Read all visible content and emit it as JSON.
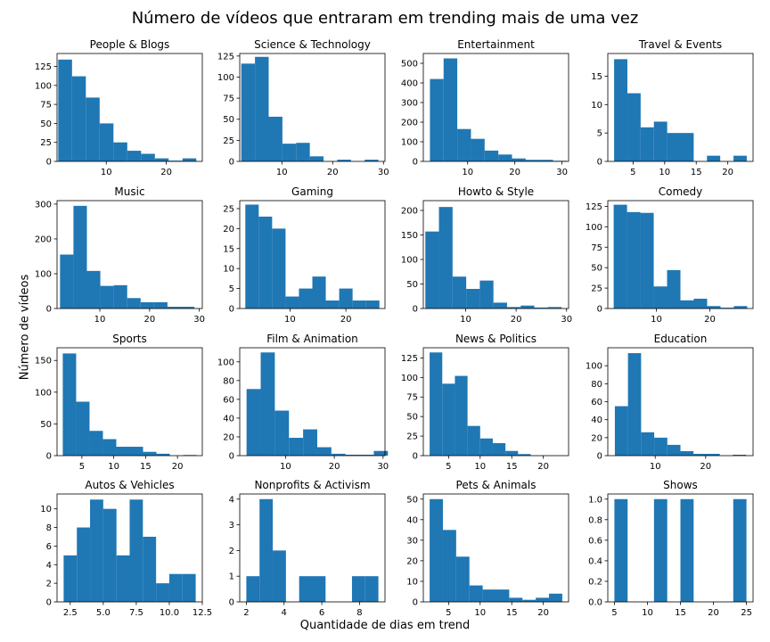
{
  "figure": {
    "suptitle": "Número de vídeos que entraram em trending mais de uma vez",
    "xlabel": "Quantidade de dias em trend",
    "ylabel": "Número de vídeos",
    "bar_color": "#1f77b4"
  },
  "chart_data": [
    {
      "type": "bar",
      "title": "People & Blogs",
      "xlim": [
        1.8,
        26
      ],
      "ylim": [
        0,
        142
      ],
      "xticks": [
        10,
        20
      ],
      "yticks": [
        0,
        25,
        50,
        75,
        100,
        125
      ],
      "bins": [
        [
          2.0,
          4.3,
          134
        ],
        [
          4.3,
          6.6,
          112
        ],
        [
          6.6,
          8.9,
          84
        ],
        [
          8.9,
          11.2,
          50
        ],
        [
          11.2,
          13.5,
          25
        ],
        [
          13.5,
          15.8,
          14
        ],
        [
          15.8,
          18.1,
          10
        ],
        [
          18.1,
          20.4,
          4
        ],
        [
          20.4,
          22.7,
          1
        ],
        [
          22.7,
          25.0,
          4
        ]
      ]
    },
    {
      "type": "bar",
      "title": "Science & Technology",
      "xlim": [
        1.7,
        30.3
      ],
      "ylim": [
        0,
        128
      ],
      "xticks": [
        10,
        20,
        30
      ],
      "yticks": [
        0,
        25,
        50,
        75,
        100,
        125
      ],
      "bins": [
        [
          2.0,
          4.7,
          116
        ],
        [
          4.7,
          7.4,
          124
        ],
        [
          7.4,
          10.1,
          53
        ],
        [
          10.1,
          12.8,
          21
        ],
        [
          12.8,
          15.5,
          22
        ],
        [
          15.5,
          18.2,
          6
        ],
        [
          18.2,
          20.9,
          0
        ],
        [
          20.9,
          23.6,
          2
        ],
        [
          23.6,
          26.3,
          0
        ],
        [
          26.3,
          29.0,
          2
        ]
      ]
    },
    {
      "type": "bar",
      "title": "Entertainment",
      "xlim": [
        0.6,
        31.4
      ],
      "ylim": [
        0,
        550
      ],
      "xticks": [
        10,
        20,
        30
      ],
      "yticks": [
        0,
        100,
        200,
        300,
        400,
        500
      ],
      "bins": [
        [
          2.0,
          4.9,
          420
        ],
        [
          4.9,
          7.8,
          525
        ],
        [
          7.8,
          10.7,
          165
        ],
        [
          10.7,
          13.6,
          115
        ],
        [
          13.6,
          16.5,
          55
        ],
        [
          16.5,
          19.4,
          35
        ],
        [
          19.4,
          22.3,
          15
        ],
        [
          22.3,
          25.2,
          8
        ],
        [
          25.2,
          28.1,
          8
        ],
        [
          28.1,
          31.0,
          3
        ]
      ]
    },
    {
      "type": "bar",
      "title": "Travel & Events",
      "xlim": [
        1.0,
        24.0
      ],
      "ylim": [
        0,
        19
      ],
      "xticks": [
        5,
        10,
        15,
        20
      ],
      "yticks": [
        0,
        5,
        10,
        15
      ],
      "bins": [
        [
          2.0,
          4.1,
          18
        ],
        [
          4.1,
          6.2,
          12
        ],
        [
          6.2,
          8.3,
          6
        ],
        [
          8.3,
          10.4,
          7
        ],
        [
          10.4,
          12.5,
          5
        ],
        [
          12.5,
          14.6,
          5
        ],
        [
          14.6,
          16.7,
          0
        ],
        [
          16.7,
          18.8,
          1
        ],
        [
          18.8,
          20.9,
          0
        ],
        [
          20.9,
          23.0,
          1
        ]
      ]
    },
    {
      "type": "bar",
      "title": "Music",
      "xlim": [
        1.4,
        30.6
      ],
      "ylim": [
        0,
        310
      ],
      "xticks": [
        10,
        20,
        30
      ],
      "yticks": [
        0,
        100,
        200,
        300
      ],
      "bins": [
        [
          2.0,
          4.7,
          155
        ],
        [
          4.7,
          7.4,
          295
        ],
        [
          7.4,
          10.1,
          108
        ],
        [
          10.1,
          12.8,
          65
        ],
        [
          12.8,
          15.5,
          67
        ],
        [
          15.5,
          18.2,
          30
        ],
        [
          18.2,
          20.9,
          18
        ],
        [
          20.9,
          23.6,
          18
        ],
        [
          23.6,
          26.3,
          5
        ],
        [
          26.3,
          29.0,
          5
        ]
      ]
    },
    {
      "type": "bar",
      "title": "Gaming",
      "xlim": [
        1.0,
        27.0
      ],
      "ylim": [
        0,
        27
      ],
      "xticks": [
        10,
        20
      ],
      "yticks": [
        0,
        5,
        10,
        15,
        20,
        25
      ],
      "bins": [
        [
          2.0,
          4.4,
          26
        ],
        [
          4.4,
          6.8,
          23
        ],
        [
          6.8,
          9.2,
          20
        ],
        [
          9.2,
          11.6,
          3
        ],
        [
          11.6,
          14.0,
          5
        ],
        [
          14.0,
          16.4,
          8
        ],
        [
          16.4,
          18.8,
          2
        ],
        [
          18.8,
          21.2,
          5
        ],
        [
          21.2,
          23.6,
          2
        ],
        [
          23.6,
          26.0,
          2
        ]
      ]
    },
    {
      "type": "bar",
      "title": "Howto & Style",
      "xlim": [
        1.6,
        30.4
      ],
      "ylim": [
        0,
        220
      ],
      "xticks": [
        10,
        20,
        30
      ],
      "yticks": [
        0,
        50,
        100,
        150,
        200
      ],
      "bins": [
        [
          2.0,
          4.7,
          157
        ],
        [
          4.7,
          7.4,
          207
        ],
        [
          7.4,
          10.1,
          65
        ],
        [
          10.1,
          12.8,
          40
        ],
        [
          12.8,
          15.5,
          57
        ],
        [
          15.5,
          18.2,
          12
        ],
        [
          18.2,
          20.9,
          3
        ],
        [
          20.9,
          23.6,
          6
        ],
        [
          23.6,
          26.3,
          2
        ],
        [
          26.3,
          29.0,
          3
        ]
      ]
    },
    {
      "type": "bar",
      "title": "Comedy",
      "xlim": [
        0.9,
        28.1
      ],
      "ylim": [
        0,
        132
      ],
      "xticks": [
        10,
        20
      ],
      "yticks": [
        0,
        25,
        50,
        75,
        100,
        125
      ],
      "bins": [
        [
          2.0,
          4.5,
          127
        ],
        [
          4.5,
          7.0,
          118
        ],
        [
          7.0,
          9.5,
          117
        ],
        [
          9.5,
          12.0,
          27
        ],
        [
          12.0,
          14.5,
          47
        ],
        [
          14.5,
          17.0,
          10
        ],
        [
          17.0,
          19.5,
          12
        ],
        [
          19.5,
          22.0,
          3
        ],
        [
          22.0,
          24.5,
          1
        ],
        [
          24.5,
          27.0,
          3
        ]
      ]
    },
    {
      "type": "bar",
      "title": "Sports",
      "xlim": [
        1.1,
        23.9
      ],
      "ylim": [
        0,
        170
      ],
      "xticks": [
        5,
        10,
        15,
        20
      ],
      "yticks": [
        0,
        50,
        100,
        150
      ],
      "bins": [
        [
          2.0,
          4.1,
          161
        ],
        [
          4.1,
          6.2,
          85
        ],
        [
          6.2,
          8.3,
          39
        ],
        [
          8.3,
          10.4,
          26
        ],
        [
          10.4,
          12.5,
          14
        ],
        [
          12.5,
          14.6,
          14
        ],
        [
          14.6,
          16.7,
          6
        ],
        [
          16.7,
          18.8,
          3
        ],
        [
          18.8,
          20.9,
          0
        ],
        [
          20.9,
          23.0,
          1
        ]
      ]
    },
    {
      "type": "bar",
      "title": "Film & Animation",
      "xlim": [
        0.6,
        30.4
      ],
      "ylim": [
        0,
        115
      ],
      "xticks": [
        10,
        20,
        30
      ],
      "yticks": [
        0,
        20,
        40,
        60,
        80,
        100
      ],
      "bins": [
        [
          2.0,
          4.9,
          71
        ],
        [
          4.9,
          7.8,
          110
        ],
        [
          7.8,
          10.7,
          48
        ],
        [
          10.7,
          13.6,
          19
        ],
        [
          13.6,
          16.5,
          28
        ],
        [
          16.5,
          19.4,
          9
        ],
        [
          19.4,
          22.3,
          2
        ],
        [
          22.3,
          25.2,
          1
        ],
        [
          25.2,
          28.1,
          1
        ],
        [
          28.1,
          31.0,
          5
        ]
      ]
    },
    {
      "type": "bar",
      "title": "News & Politics",
      "xlim": [
        1.0,
        24.0
      ],
      "ylim": [
        0,
        138
      ],
      "xticks": [
        5,
        10,
        15,
        20
      ],
      "yticks": [
        0,
        25,
        50,
        75,
        100,
        125
      ],
      "bins": [
        [
          2.0,
          4.0,
          132
        ],
        [
          4.0,
          6.0,
          92
        ],
        [
          6.0,
          8.0,
          102
        ],
        [
          8.0,
          10.0,
          38
        ],
        [
          10.0,
          12.0,
          22
        ],
        [
          12.0,
          14.0,
          16
        ],
        [
          14.0,
          16.0,
          6
        ],
        [
          16.0,
          18.0,
          2
        ],
        [
          18.0,
          20.0,
          0
        ],
        [
          20.0,
          22.0,
          0
        ]
      ]
    },
    {
      "type": "bar",
      "title": "Education",
      "xlim": [
        0.6,
        29.4
      ],
      "ylim": [
        0,
        120
      ],
      "xticks": [
        10,
        20
      ],
      "yticks": [
        0,
        20,
        40,
        60,
        80,
        100
      ],
      "bins": [
        [
          2.0,
          4.6,
          55
        ],
        [
          4.6,
          7.2,
          114
        ],
        [
          7.2,
          9.8,
          26
        ],
        [
          9.8,
          12.4,
          20
        ],
        [
          12.4,
          15.0,
          12
        ],
        [
          15.0,
          17.6,
          5
        ],
        [
          17.6,
          20.2,
          2
        ],
        [
          20.2,
          22.8,
          2
        ],
        [
          22.8,
          25.4,
          0
        ],
        [
          25.4,
          28.0,
          1
        ]
      ]
    },
    {
      "type": "bar",
      "title": "Autos & Vehicles",
      "xlim": [
        1.5,
        12.5
      ],
      "ylim": [
        0,
        11.6
      ],
      "xticks": [
        2.5,
        5.0,
        7.5,
        10.0,
        12.5
      ],
      "yticks": [
        0,
        2,
        4,
        6,
        8,
        10
      ],
      "bins": [
        [
          2.0,
          3.0,
          5
        ],
        [
          3.0,
          4.0,
          8
        ],
        [
          4.0,
          5.0,
          11
        ],
        [
          5.0,
          6.0,
          10
        ],
        [
          6.0,
          7.0,
          5
        ],
        [
          7.0,
          8.0,
          11
        ],
        [
          8.0,
          9.0,
          7
        ],
        [
          9.0,
          10.0,
          2
        ],
        [
          10.0,
          11.0,
          3
        ],
        [
          11.0,
          12.0,
          3
        ]
      ]
    },
    {
      "type": "bar",
      "title": "Nonprofits & Activism",
      "xlim": [
        1.65,
        9.35
      ],
      "ylim": [
        0,
        4.2
      ],
      "xticks": [
        2,
        4,
        6,
        8
      ],
      "yticks": [
        0,
        1,
        2,
        3,
        4
      ],
      "bins": [
        [
          2.0,
          2.7,
          1
        ],
        [
          2.7,
          3.4,
          4
        ],
        [
          3.4,
          4.1,
          2
        ],
        [
          4.1,
          4.8,
          0
        ],
        [
          4.8,
          5.5,
          1
        ],
        [
          5.5,
          6.2,
          1
        ],
        [
          6.2,
          6.9,
          0
        ],
        [
          6.9,
          7.6,
          0
        ],
        [
          7.6,
          8.3,
          1
        ],
        [
          8.3,
          9.0,
          1
        ]
      ]
    },
    {
      "type": "bar",
      "title": "Pets & Animals",
      "xlim": [
        1.0,
        24.0
      ],
      "ylim": [
        0,
        52.5
      ],
      "xticks": [
        5,
        10,
        15,
        20
      ],
      "yticks": [
        0,
        10,
        20,
        30,
        40,
        50
      ],
      "bins": [
        [
          2.0,
          4.1,
          50
        ],
        [
          4.1,
          6.2,
          35
        ],
        [
          6.2,
          8.3,
          22
        ],
        [
          8.3,
          10.4,
          8
        ],
        [
          10.4,
          12.5,
          6
        ],
        [
          12.5,
          14.6,
          6
        ],
        [
          14.6,
          16.7,
          2
        ],
        [
          16.7,
          18.8,
          1
        ],
        [
          18.8,
          20.9,
          2
        ],
        [
          20.9,
          23.0,
          4
        ]
      ]
    },
    {
      "type": "bar",
      "title": "Shows",
      "xlim": [
        4.0,
        26.0
      ],
      "ylim": [
        0,
        1.05
      ],
      "xticks": [
        5,
        10,
        15,
        20,
        25
      ],
      "yticks": [
        0.0,
        0.2,
        0.4,
        0.6,
        0.8,
        1.0
      ],
      "bins": [
        [
          5.0,
          7.0,
          1
        ],
        [
          7.0,
          9.0,
          0
        ],
        [
          9.0,
          11.0,
          0
        ],
        [
          11.0,
          13.0,
          1
        ],
        [
          13.0,
          15.0,
          0
        ],
        [
          15.0,
          17.0,
          1
        ],
        [
          17.0,
          19.0,
          0
        ],
        [
          19.0,
          21.0,
          0
        ],
        [
          21.0,
          23.0,
          0
        ],
        [
          23.0,
          25.0,
          1
        ]
      ]
    }
  ]
}
